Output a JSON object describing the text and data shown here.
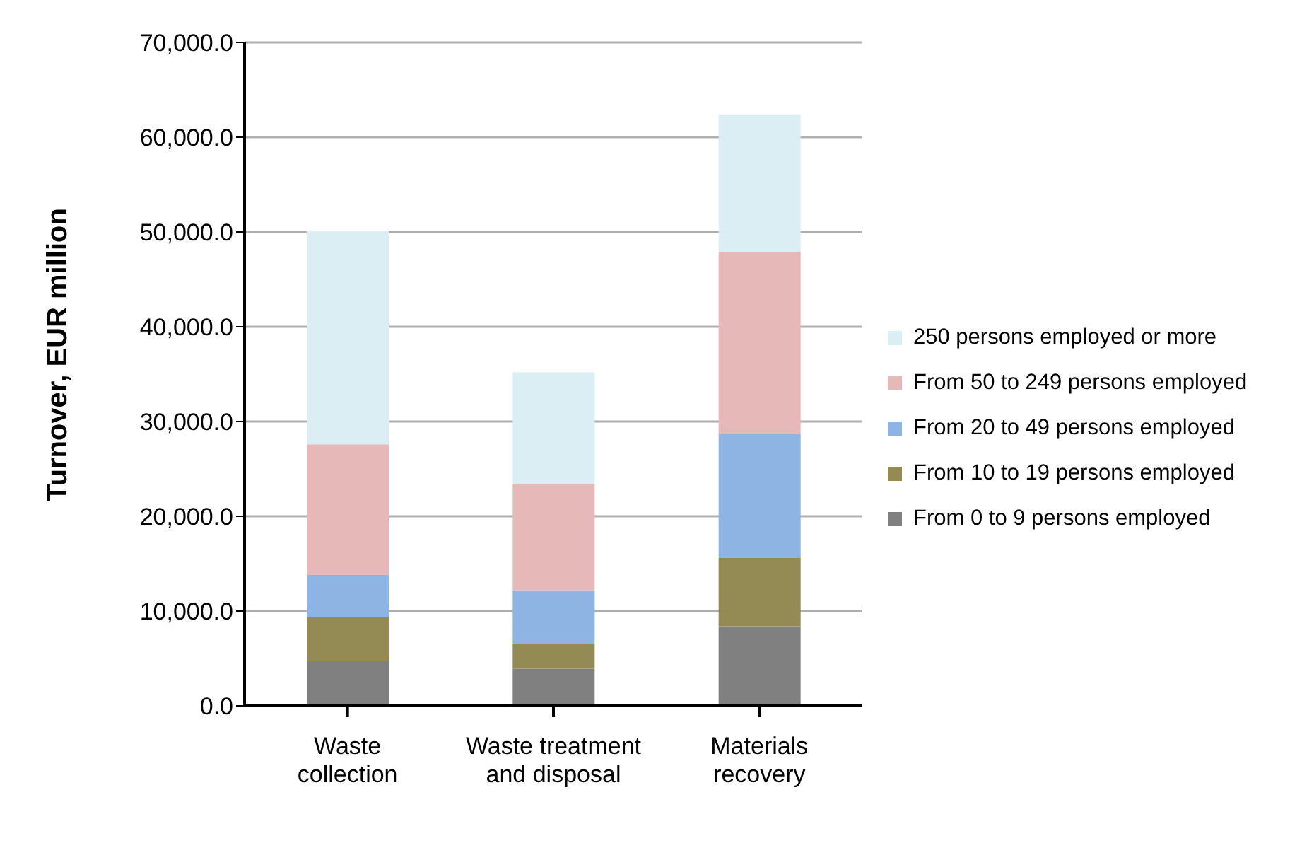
{
  "chart_data": {
    "type": "bar",
    "stacked": true,
    "ylabel": "Turnover, EUR million",
    "categories": [
      "Waste collection",
      "Waste treatment and disposal",
      "Materials recovery"
    ],
    "series": [
      {
        "name": "From 0 to 9 persons employed",
        "color": "#808080",
        "values": [
          4700,
          3900,
          8400
        ]
      },
      {
        "name": "From 10 to 19 persons employed",
        "color": "#948a54",
        "values": [
          4700,
          2600,
          7200
        ]
      },
      {
        "name": "From 20 to 49 persons employed",
        "color": "#8eb4e3",
        "values": [
          4400,
          5700,
          13100
        ]
      },
      {
        "name": "From 50 to 249 persons employed",
        "color": "#e6b9b8",
        "values": [
          13800,
          11200,
          19200
        ]
      },
      {
        "name": "250 persons employed or more",
        "color": "#dbeef4",
        "values": [
          22500,
          11800,
          14500
        ]
      }
    ],
    "ylim": [
      0,
      70000
    ],
    "yticks": [
      {
        "value": 0,
        "label": "0.0"
      },
      {
        "value": 10000,
        "label": "10,000.0"
      },
      {
        "value": 20000,
        "label": "20,000.0"
      },
      {
        "value": 30000,
        "label": "30,000.0"
      },
      {
        "value": 40000,
        "label": "40,000.0"
      },
      {
        "value": 50000,
        "label": "50,000.0"
      },
      {
        "value": 60000,
        "label": "60,000.0"
      },
      {
        "value": 70000,
        "label": "70,000.0"
      }
    ],
    "grid": "y",
    "legend": "right"
  }
}
